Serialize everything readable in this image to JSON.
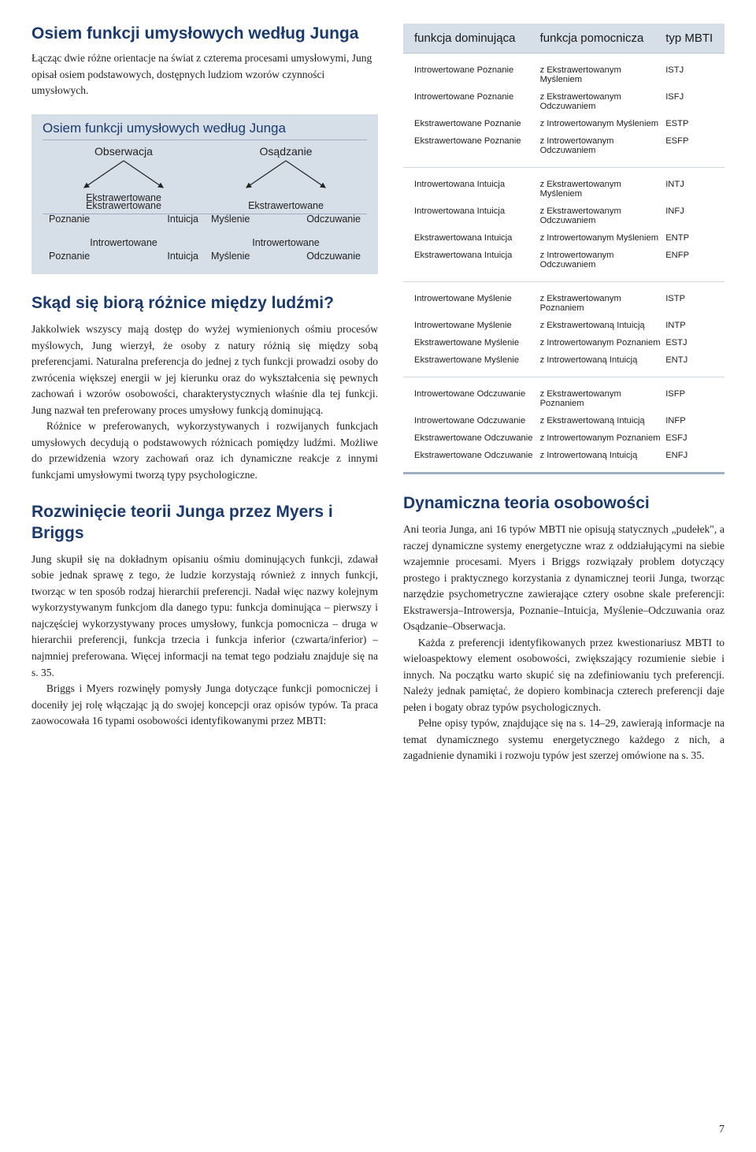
{
  "left": {
    "title1": "Osiem funkcji umysłowych według Junga",
    "intro": "Łącząc dwie różne orientacje na świat z czterema procesami umysłowymi, Jung opisał osiem podstawowych, dostępnych ludziom wzorów czynności umysłowych.",
    "diagram": {
      "title": "Osiem funkcji umysłowych według Junga",
      "left_head": "Obserwacja",
      "right_head": "Osądzanie",
      "extra_label": "Ekstrawertowane",
      "intro_label": "Introwertowane",
      "left_leaves": [
        "Poznanie",
        "Intuicja"
      ],
      "right_leaves": [
        "Myślenie",
        "Odczuwanie"
      ]
    },
    "title2": "Skąd się biorą różnice między ludźmi?",
    "p2a": "Jakkolwiek wszyscy mają dostęp do wyżej wymienionych ośmiu procesów myślowych, Jung wierzył, że osoby z natury różnią się między sobą preferencjami. Naturalna preferencja do jednej z tych funkcji prowadzi osoby do zwrócenia większej energii w jej kierunku oraz do wykształcenia się pewnych zachowań i wzorów osobowości, charakterystycznych właśnie dla tej funkcji. Jung nazwał ten preferowany proces umysłowy funkcją dominującą.",
    "p2b": "Różnice w preferowanych, wykorzystywanych i rozwijanych funkcjach umysłowych decydują o podstawowych różnicach pomiędzy ludźmi. Możliwe do przewidzenia wzory zachowań oraz ich dynamiczne reakcje z innymi funkcjami umysłowymi tworzą typy psychologiczne.",
    "title3": "Rozwinięcie teorii Junga przez Myers i Briggs",
    "p3a": "Jung skupił się na dokładnym opisaniu ośmiu dominujących funkcji, zdawał sobie jednak sprawę z tego, że ludzie korzystają również z innych funkcji, tworząc w ten sposób rodzaj hierarchii preferencji. Nadał więc nazwy kolejnym wykorzystywanym funkcjom dla danego typu: funkcja dominująca – pierwszy i najczęściej wykorzystywany proces umysłowy, funkcja pomocnicza – druga w hierarchii preferencji, funkcja trzecia i funkcja inferior (czwarta/inferior) – najmniej preferowana. Więcej informacji na temat tego podziału znajduje się na s. 35.",
    "p3b": "Briggs i Myers rozwinęły pomysły Junga dotyczące funkcji pomocniczej i doceniły jej rolę włączając ją do swojej koncepcji oraz opisów typów. Ta praca zaowocowała 16 typami osobowości identyfikowanymi przez MBTI:"
  },
  "mbti": {
    "headers": {
      "c1": "funkcja dominująca",
      "c2": "funkcja pomocnicza",
      "c3": "typ MBTI"
    },
    "sections": [
      [
        {
          "c1": "Introwertowane Poznanie",
          "c2": "z Ekstrawertowanym Myśleniem",
          "c3": "ISTJ"
        },
        {
          "c1": "Introwertowane Poznanie",
          "c2": "z Ekstrawertowanym Odczuwaniem",
          "c3": "ISFJ"
        },
        {
          "c1": "Ekstrawertowane Poznanie",
          "c2": "z Introwertowanym Myśleniem",
          "c3": "ESTP"
        },
        {
          "c1": "Ekstrawertowane Poznanie",
          "c2": "z Introwertowanym Odczuwaniem",
          "c3": "ESFP"
        }
      ],
      [
        {
          "c1": "Introwertowana Intuicja",
          "c2": "z Ekstrawertowanym Myśleniem",
          "c3": "INTJ"
        },
        {
          "c1": "Introwertowana Intuicja",
          "c2": "z Ekstrawertowanym Odczuwaniem",
          "c3": "INFJ"
        },
        {
          "c1": "Ekstrawertowana Intuicja",
          "c2": "z Introwertowanym Myśleniem",
          "c3": "ENTP"
        },
        {
          "c1": "Ekstrawertowana Intuicja",
          "c2": "z Introwertowanym Odczuwaniem",
          "c3": "ENFP"
        }
      ],
      [
        {
          "c1": "Introwertowane Myślenie",
          "c2": "z Ekstrawertowanym Poznaniem",
          "c3": "ISTP"
        },
        {
          "c1": "Introwertowane Myślenie",
          "c2": "z Ekstrawertowaną Intuicją",
          "c3": "INTP"
        },
        {
          "c1": "Ekstrawertowane Myślenie",
          "c2": "z Introwertowanym Poznaniem",
          "c3": "ESTJ"
        },
        {
          "c1": "Ekstrawertowane Myślenie",
          "c2": "z Introwertowaną Intuicją",
          "c3": "ENTJ"
        }
      ],
      [
        {
          "c1": "Introwertowane Odczuwanie",
          "c2": "z Ekstrawertowanym Poznaniem",
          "c3": "ISFP"
        },
        {
          "c1": "Introwertowane Odczuwanie",
          "c2": "z Ekstrawertowaną Intuicją",
          "c3": "INFP"
        },
        {
          "c1": "Ekstrawertowane Odczuwanie",
          "c2": "z Introwertowanym Poznaniem",
          "c3": "ESFJ"
        },
        {
          "c1": "Ekstrawertowane Odczuwanie",
          "c2": "z Introwertowaną Intuicją",
          "c3": "ENFJ"
        }
      ]
    ]
  },
  "right": {
    "title4": "Dynamiczna teoria osobowości",
    "p4a": "Ani teoria Junga, ani 16 typów MBTI nie opisują statycznych „pudełek\", a raczej dynamiczne systemy energetyczne wraz z oddziałującymi na siebie wzajemnie procesami. Myers i Briggs rozwiązały problem dotyczący prostego i praktycznego korzystania z dynamicznej teorii Junga, tworząc narzędzie psychometryczne zawierające cztery osobne skale preferencji: Ekstrawersja–Introwersja, Poznanie–Intuicja, Myślenie–Odczuwania oraz Osądzanie–Obserwacja.",
    "p4b": "Każda z preferencji identyfikowanych przez kwestionariusz MBTI to wieloaspektowy element osobowości, zwiększający rozumienie siebie i innych. Na początku warto skupić się na zdefiniowaniu tych preferencji. Należy jednak pamiętać, że dopiero kombinacja czterech preferencji daje pełen i bogaty obraz typów psychologicznych.",
    "p4c": "Pełne opisy typów, znajdujące się na s. 14–29, zawierają informacje na temat dynamicznego systemu energetycznego każdego z nich, a zagadnienie dynamiki i rozwoju typów jest szerzej omówione na s. 35."
  },
  "page_number": "7"
}
